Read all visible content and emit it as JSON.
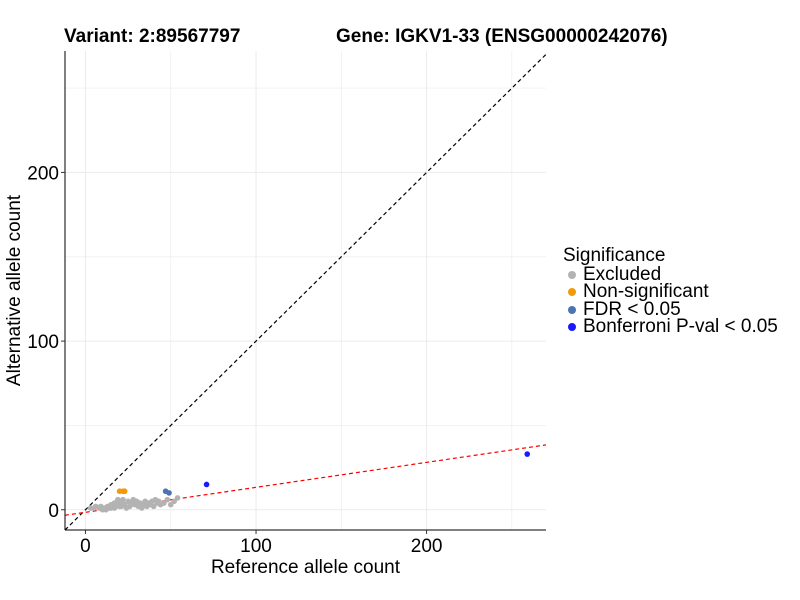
{
  "header": {
    "variant_title": "Variant: 2:89567797",
    "gene_title": "Gene: IGKV1-33 (ENSG00000242076)"
  },
  "colors": {
    "excluded": "#b3b3b3",
    "non_significant": "#f29b0a",
    "fdr": "#4c74b3",
    "bonferroni": "#1a1aff",
    "identity_line": "#000000",
    "fit_line": "#ff0000",
    "grid": "#ebebeb"
  },
  "chart_data": {
    "type": "scatter",
    "xlabel": "Reference allele count",
    "ylabel": "Alternative allele count",
    "xlim": [
      -12,
      270
    ],
    "ylim": [
      -12,
      272
    ],
    "x_ticks": [
      0,
      100,
      200
    ],
    "y_ticks": [
      0,
      100,
      200
    ],
    "x_tick_labels": [
      "0",
      "100",
      "200"
    ],
    "y_tick_labels": [
      "0",
      "100",
      "200"
    ],
    "grid": true,
    "reference_lines": [
      {
        "name": "identity",
        "slope": 1,
        "intercept": 0,
        "style": "dashed",
        "color": "#000000"
      },
      {
        "name": "fit",
        "slope": 0.148,
        "intercept": -1.5,
        "style": "dashed",
        "color": "#ff0000"
      }
    ],
    "legend": {
      "title": "Significance",
      "position": "right",
      "entries": [
        {
          "label": "Excluded",
          "key": "excluded"
        },
        {
          "label": "Non-significant",
          "key": "non_significant"
        },
        {
          "label": "FDR < 0.05",
          "key": "fdr"
        },
        {
          "label": "Bonferroni P-val < 0.05",
          "key": "bonferroni"
        }
      ]
    },
    "series": [
      {
        "name": "Excluded",
        "key": "excluded",
        "points": [
          [
            3,
            1
          ],
          [
            5,
            1
          ],
          [
            6,
            2
          ],
          [
            8,
            1
          ],
          [
            9,
            2
          ],
          [
            10,
            0
          ],
          [
            11,
            1
          ],
          [
            12,
            0
          ],
          [
            13,
            2
          ],
          [
            14,
            1
          ],
          [
            15,
            1
          ],
          [
            15,
            3
          ],
          [
            16,
            2
          ],
          [
            17,
            4
          ],
          [
            18,
            3
          ],
          [
            19,
            5
          ],
          [
            20,
            2
          ],
          [
            21,
            4
          ],
          [
            22,
            6
          ],
          [
            23,
            3
          ],
          [
            24,
            1
          ],
          [
            25,
            5
          ],
          [
            26,
            2
          ],
          [
            27,
            4
          ],
          [
            28,
            6
          ],
          [
            29,
            3
          ],
          [
            30,
            5
          ],
          [
            31,
            2
          ],
          [
            32,
            4
          ],
          [
            33,
            1
          ],
          [
            34,
            3
          ],
          [
            35,
            5
          ],
          [
            36,
            2
          ],
          [
            37,
            4
          ],
          [
            38,
            3
          ],
          [
            39,
            5
          ],
          [
            40,
            2
          ],
          [
            41,
            6
          ],
          [
            42,
            4
          ],
          [
            43,
            5
          ],
          [
            44,
            3
          ],
          [
            46,
            4
          ],
          [
            48,
            6
          ],
          [
            50,
            3
          ],
          [
            52,
            5
          ],
          [
            54,
            7
          ],
          [
            19,
            6
          ],
          [
            21,
            2
          ],
          [
            17,
            1
          ]
        ]
      },
      {
        "name": "Non-significant",
        "key": "non_significant",
        "points": [
          [
            20,
            11
          ],
          [
            22,
            11
          ],
          [
            23,
            11
          ]
        ]
      },
      {
        "name": "FDR < 0.05",
        "key": "fdr",
        "points": [
          [
            47,
            11
          ],
          [
            49,
            10
          ]
        ]
      },
      {
        "name": "Bonferroni P-val < 0.05",
        "key": "bonferroni",
        "points": [
          [
            71,
            15
          ],
          [
            259,
            33
          ]
        ]
      }
    ]
  }
}
